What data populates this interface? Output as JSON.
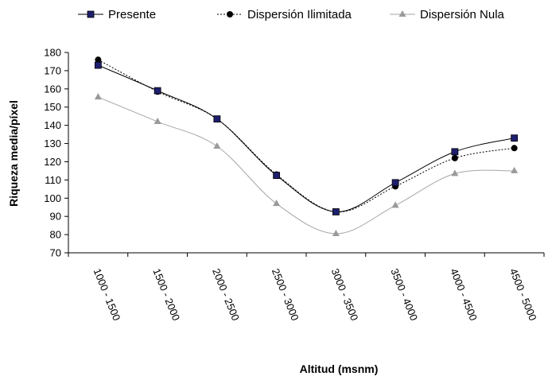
{
  "chart_data": {
    "type": "line",
    "title": "",
    "xlabel": "Altitud (msnm)",
    "ylabel": "Riqueza media/píxel",
    "ylim": [
      70,
      180
    ],
    "yticks": [
      70,
      80,
      90,
      100,
      110,
      120,
      130,
      140,
      150,
      160,
      170,
      180
    ],
    "categories": [
      "1000 - 1500",
      "1500 - 2000",
      "2000 - 2500",
      "2500 - 3000",
      "3000 - 3500",
      "3500 - 4000",
      "4000 - 4500",
      "4500 - 5000"
    ],
    "smooth": true,
    "grid": false,
    "legend_position": "top",
    "series": [
      {
        "name": "Presente",
        "values": [
          173,
          159,
          143.5,
          112.5,
          92.5,
          108.5,
          125.5,
          133
        ],
        "color": "#000000",
        "marker": "square",
        "marker_color": "#1f1f6e",
        "line_style": "solid"
      },
      {
        "name": "Dispersión Ilimitada",
        "values": [
          176,
          158.5,
          143.5,
          113,
          92.5,
          106.5,
          122,
          127.5
        ],
        "color": "#000000",
        "marker": "circle",
        "marker_color": "#000000",
        "line_style": "dotted"
      },
      {
        "name": "Dispersión Nula",
        "values": [
          155.5,
          142,
          128.5,
          97,
          80.5,
          96,
          113.5,
          115
        ],
        "color": "#a6a6a6",
        "marker": "triangle",
        "marker_color": "#9a9a9a",
        "line_style": "solid"
      }
    ]
  }
}
